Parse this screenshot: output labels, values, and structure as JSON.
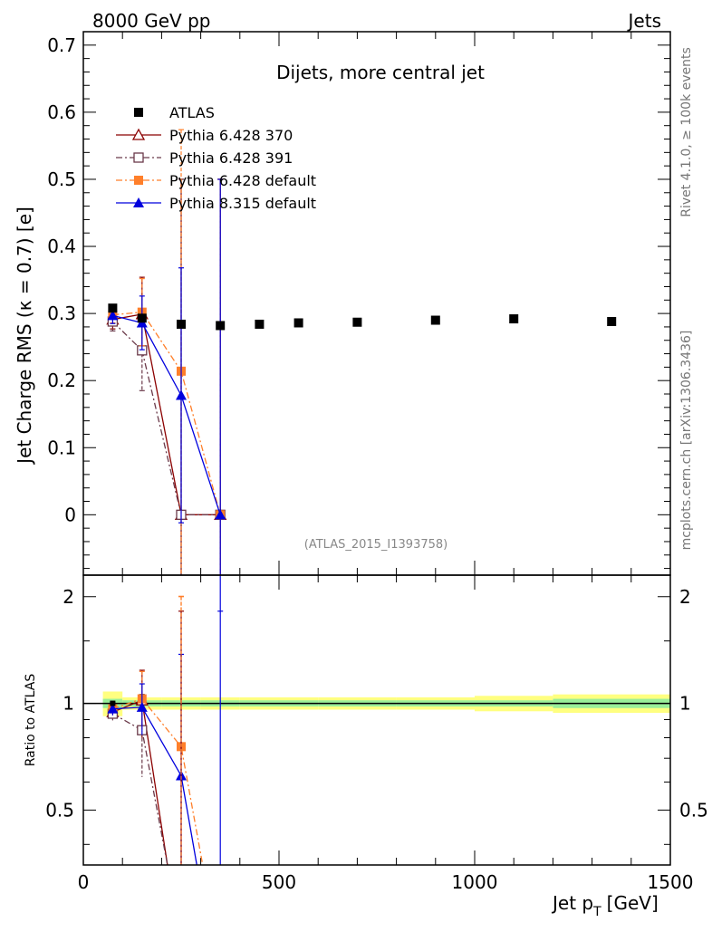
{
  "header": {
    "left": "8000 GeV pp",
    "right": "Jets"
  },
  "side_labels": {
    "rivet": "Rivet 4.1.0, ≥ 100k events",
    "mcplots": "mcplots.cern.ch [arXiv:1306.3436]"
  },
  "chart_data": {
    "type": "scatter",
    "title": "Dijets, more central jet",
    "watermark": "(ATLAS_2015_I1393758)",
    "xlabel": "Jet p",
    "xlabel_sub": "T",
    "xlabel_unit": "[GeV]",
    "ylabel": "Jet Charge RMS (κ = 0.7) [e]",
    "ratio_ylabel": "Ratio to ATLAS",
    "xlim": [
      0,
      1500
    ],
    "ylim": [
      -0.09,
      0.72
    ],
    "ratio_ylim": [
      0.35,
      2.3
    ],
    "x_ticks": [
      0,
      500,
      1000,
      1500
    ],
    "y_ticks": [
      0,
      0.1,
      0.2,
      0.3,
      0.4,
      0.5,
      0.6,
      0.7
    ],
    "ratio_ticks": [
      0.5,
      1,
      2
    ],
    "legend": [
      {
        "label": "ATLAS",
        "color": "#000000",
        "marker": "square-filled",
        "line": "none"
      },
      {
        "label": "Pythia 6.428 370",
        "color": "#8b0000",
        "marker": "triangle-open",
        "line": "solid"
      },
      {
        "label": "Pythia 6.428 391",
        "color": "#6b3a4a",
        "marker": "square-open",
        "line": "dashdot"
      },
      {
        "label": "Pythia 6.428 default",
        "color": "#ff7f2a",
        "marker": "square-filled",
        "line": "dashdot"
      },
      {
        "label": "Pythia 8.315 default",
        "color": "#0000dd",
        "marker": "triangle-filled",
        "line": "solid"
      }
    ],
    "atlas": {
      "x": [
        75,
        150,
        250,
        350,
        450,
        550,
        700,
        900,
        1100,
        1350
      ],
      "y": [
        0.308,
        0.293,
        0.284,
        0.282,
        0.284,
        0.286,
        0.287,
        0.29,
        0.292,
        0.288
      ],
      "yerr": [
        0.006,
        0.005,
        0.004,
        0.004,
        0.004,
        0.004,
        0.004,
        0.004,
        0.004,
        0.005
      ],
      "bin_edges": [
        50,
        100,
        200,
        300,
        400,
        500,
        600,
        800,
        1000,
        1200,
        1500
      ]
    },
    "series": [
      {
        "name": "Pythia 6.428 370",
        "x": [
          75,
          150,
          250,
          350
        ],
        "y": [
          0.291,
          0.299,
          0.0,
          0.0
        ],
        "yerr": [
          0.014,
          0.055,
          0.5,
          0.5
        ]
      },
      {
        "name": "Pythia 6.428 391",
        "x": [
          75,
          150,
          250,
          350
        ],
        "y": [
          0.288,
          0.245,
          0.0,
          0.0
        ],
        "yerr": [
          0.014,
          0.06,
          0.5,
          0.5
        ]
      },
      {
        "name": "Pythia 6.428 default",
        "x": [
          75,
          150,
          250,
          350
        ],
        "y": [
          0.298,
          0.302,
          0.214,
          0.0
        ],
        "yerr": [
          0.012,
          0.05,
          0.36,
          0.5
        ]
      },
      {
        "name": "Pythia 8.315 default",
        "x": [
          75,
          150,
          250,
          350
        ],
        "y": [
          0.297,
          0.286,
          0.178,
          0.0
        ],
        "yerr": [
          0.012,
          0.04,
          0.19,
          0.5
        ]
      }
    ],
    "ratio": {
      "atlas_band_inner": [
        0.03,
        0.02,
        0.02,
        0.02,
        0.02,
        0.02,
        0.02,
        0.02,
        0.02,
        0.03
      ],
      "atlas_band_outer": [
        0.08,
        0.04,
        0.04,
        0.04,
        0.04,
        0.04,
        0.04,
        0.04,
        0.05,
        0.06
      ],
      "series": [
        {
          "name": "Pythia 6.428 370",
          "x": [
            75,
            150,
            215
          ],
          "y": [
            0.945,
            1.02,
            0.35
          ],
          "yerr": [
            0.04,
            0.22,
            0
          ],
          "markers": [
            1,
            1,
            0
          ]
        },
        {
          "name": "Pythia 6.428 391",
          "x": [
            75,
            150,
            215
          ],
          "y": [
            0.935,
            0.84,
            0.35
          ],
          "yerr": [
            0.04,
            0.22,
            0
          ],
          "markers": [
            1,
            1,
            0
          ]
        },
        {
          "name": "Pythia 6.428 default",
          "x": [
            75,
            150,
            250,
            305
          ],
          "y": [
            0.965,
            1.03,
            0.755,
            0.35
          ],
          "yerr": [
            0.04,
            0.2,
            1.25,
            0
          ],
          "markers": [
            1,
            1,
            1,
            0
          ]
        },
        {
          "name": "Pythia 8.315 default",
          "x": [
            75,
            150,
            250,
            290
          ],
          "y": [
            0.965,
            0.975,
            0.625,
            0.35
          ],
          "yerr": [
            0.04,
            0.16,
            0.75,
            0
          ],
          "markers": [
            1,
            1,
            1,
            0
          ]
        }
      ]
    }
  }
}
